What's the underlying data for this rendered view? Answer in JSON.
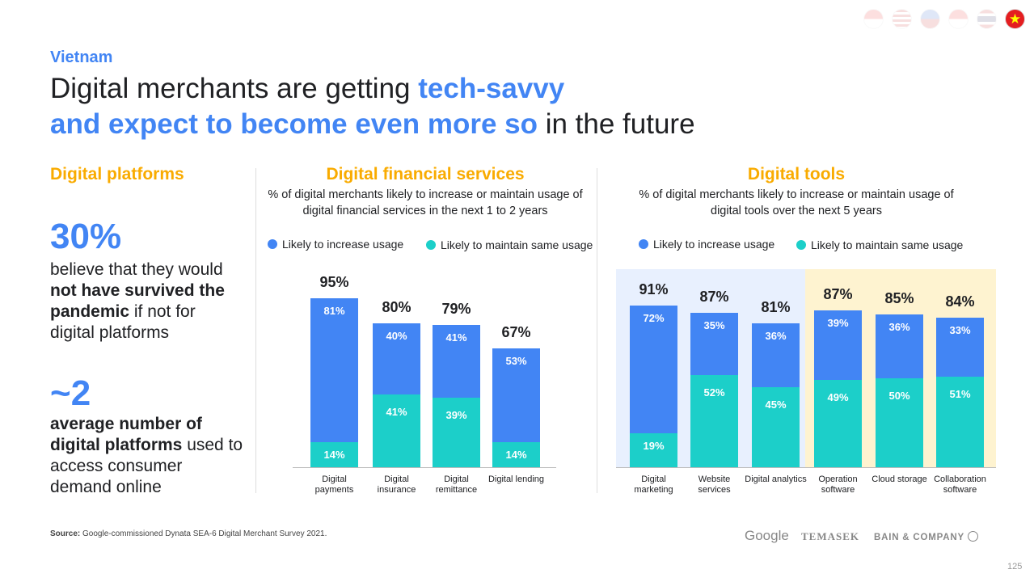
{
  "header": {
    "country": "Vietnam",
    "title_part1": "Digital merchants are getting ",
    "title_highlight1": "tech-savvy",
    "title_highlight2": "and expect to become even more so",
    "title_part2": " in the future"
  },
  "flags": [
    "Indonesia",
    "Malaysia",
    "Philippines",
    "Singapore",
    "Thailand",
    "Vietnam"
  ],
  "left": {
    "heading": "Digital platforms",
    "stat1": "30%",
    "stat1_text_a": "believe that they would ",
    "stat1_text_bold": "not have survived the pandemic",
    "stat1_text_b": " if not for digital platforms",
    "stat2": "~2",
    "stat2_bold": "average number of digital platforms",
    "stat2_text": " used to access consumer demand online"
  },
  "colors": {
    "increase": "#4285f4",
    "maintain": "#1ccfc9",
    "bg_blue": "#e8f0fe",
    "bg_yellow": "#fef3d0"
  },
  "chart_data": [
    {
      "type": "bar",
      "stacked": true,
      "title": "Digital financial services",
      "subtitle": "% of digital merchants likely to increase or maintain usage of digital financial services in the next 1 to 2 years",
      "legend": [
        "Likely to increase usage",
        "Likely to maintain same usage"
      ],
      "categories": [
        "Digital payments",
        "Digital insurance",
        "Digital remittance",
        "Digital lending"
      ],
      "series": [
        {
          "name": "Likely to maintain same usage",
          "values": [
            14,
            41,
            39,
            14
          ]
        },
        {
          "name": "Likely to increase usage",
          "values": [
            81,
            40,
            41,
            53
          ]
        }
      ],
      "totals": [
        "95%",
        "80%",
        "79%",
        "67%"
      ]
    },
    {
      "type": "bar",
      "stacked": true,
      "title": "Digital tools",
      "subtitle": "% of digital merchants likely to increase or maintain usage of digital tools over the next 5 years",
      "legend": [
        "Likely to increase usage",
        "Likely to maintain same usage"
      ],
      "categories": [
        "Digital marketing",
        "Website services",
        "Digital analytics",
        "Operation software",
        "Cloud storage",
        "Collaboration software"
      ],
      "series": [
        {
          "name": "Likely to maintain same usage",
          "values": [
            19,
            52,
            45,
            49,
            50,
            51
          ]
        },
        {
          "name": "Likely to increase usage",
          "values": [
            72,
            35,
            36,
            39,
            36,
            33
          ]
        }
      ],
      "totals": [
        "91%",
        "87%",
        "81%",
        "87%",
        "85%",
        "84%"
      ]
    }
  ],
  "footer": {
    "source_label": "Source:",
    "source_text": " Google-commissioned Dynata SEA-6 Digital Merchant Survey 2021.",
    "logos": [
      "Google",
      "TEMASEK",
      "BAIN & COMPANY"
    ],
    "page": "125"
  }
}
